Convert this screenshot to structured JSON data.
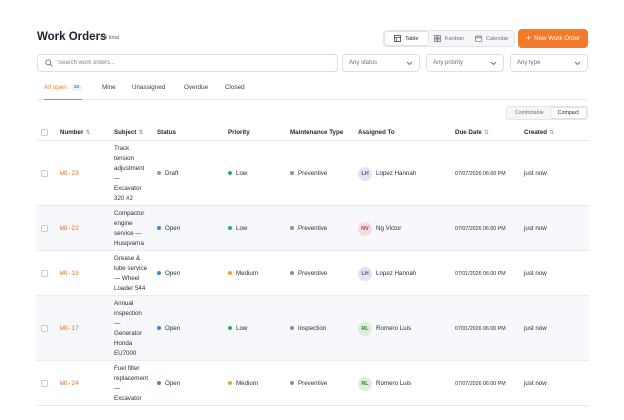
{
  "header": {
    "title": "Work Orders",
    "total": "18 total",
    "views": [
      "Table",
      "Kanban",
      "Calendar"
    ],
    "new_button": "New Work Order"
  },
  "filters": {
    "search_placeholder": "Search work orders...",
    "status": "Any status",
    "priority": "Any priority",
    "type": "Any type"
  },
  "tabs": [
    {
      "label": "All open",
      "count": "18"
    },
    {
      "label": "Mine"
    },
    {
      "label": "Unassigned"
    },
    {
      "label": "Overdue"
    },
    {
      "label": "Closed"
    }
  ],
  "density": {
    "comfortable": "Comfortable",
    "compact": "Compact"
  },
  "columns": [
    "Number",
    "Subject",
    "Status",
    "Priority",
    "Maintenance Type",
    "Assigned To",
    "Due Date",
    "Created"
  ],
  "rows": [
    {
      "number": "WO-23",
      "subject": [
        "Track",
        "tension",
        "adjustment",
        "—",
        "Excavator",
        "320 #2"
      ],
      "status": "Draft",
      "priority": "Low",
      "type": "Preventive",
      "initials": "LH",
      "assignee": "Lopez Hannah",
      "due": "07/07/2026 06:00 PM",
      "created": "just now"
    },
    {
      "number": "WO-22",
      "subject": [
        "Compactor",
        "engine",
        "service —",
        "Husqvarna"
      ],
      "status": "Open",
      "priority": "Low",
      "type": "Preventive",
      "initials": "NV",
      "assignee": "Ng Victor",
      "due": "07/07/2026 06:00 PM",
      "created": "just now"
    },
    {
      "number": "WO-19",
      "subject": [
        "Grease &",
        "lube service",
        "— Wheel",
        "Loader 544"
      ],
      "status": "Open",
      "priority": "Medium",
      "type": "Preventive",
      "initials": "LH",
      "assignee": "Lopez Hannah",
      "due": "07/01/2026 06:00 PM",
      "created": "just now"
    },
    {
      "number": "WO-17",
      "subject": [
        "Annual",
        "inspection",
        "—",
        "Generator",
        "Honda",
        "EU7000"
      ],
      "status": "Open",
      "priority": "Low",
      "type": "Inspection",
      "initials": "RL",
      "assignee": "Romero Luis",
      "due": "07/01/2026 06:00 PM",
      "created": "just now"
    },
    {
      "number": "WO-24",
      "subject": [
        "Fuel filter",
        "replacement",
        "—",
        "Excavator"
      ],
      "status": "Open",
      "priority": "Medium",
      "type": "Preventive",
      "initials": "RL",
      "assignee": "Romero Luis",
      "due": "07/07/2026 06:00 PM",
      "created": "just now"
    }
  ],
  "colors": {
    "accent": "#f27a29",
    "status_draft": "#9a8fd6",
    "status_open": "#3a8be0",
    "priority_low": "#22b35e",
    "priority_medium": "#f0a020",
    "type_dot": "#8a909b",
    "avatar_LH": "#e6e2f4",
    "avatar_NV": "#f7dcdf",
    "avatar_RL": "#dcefd9"
  }
}
